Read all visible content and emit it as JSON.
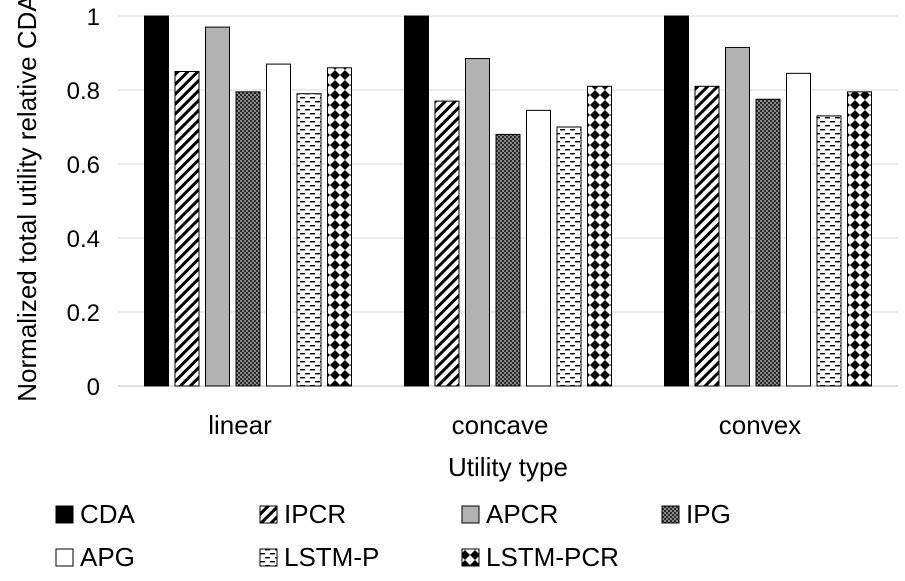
{
  "chart_data": {
    "type": "bar",
    "title": "",
    "xlabel": "Utility type",
    "ylabel": "Normalized total utility relative CDA",
    "ylim": [
      0,
      1
    ],
    "yticks": [
      0,
      0.2,
      0.4,
      0.6,
      0.8,
      1
    ],
    "ytick_labels": [
      "0",
      "0.2",
      "0.4",
      "0.6",
      "0.8",
      "1"
    ],
    "categories": [
      "linear",
      "concave",
      "convex"
    ],
    "grid": true,
    "legend_position": "bottom",
    "series": [
      {
        "name": "CDA",
        "values": [
          1.0,
          1.0,
          1.0
        ],
        "pattern": "solid-black"
      },
      {
        "name": "IPCR",
        "values": [
          0.85,
          0.77,
          0.81
        ],
        "pattern": "diagonal-hatch"
      },
      {
        "name": "APCR",
        "values": [
          0.97,
          0.885,
          0.915
        ],
        "pattern": "solid-gray"
      },
      {
        "name": "IPG",
        "values": [
          0.795,
          0.68,
          0.775
        ],
        "pattern": "dense-check"
      },
      {
        "name": "APG",
        "values": [
          0.87,
          0.745,
          0.845
        ],
        "pattern": "solid-white"
      },
      {
        "name": "LSTM-P",
        "values": [
          0.79,
          0.7,
          0.73
        ],
        "pattern": "dashes"
      },
      {
        "name": "LSTM-PCR",
        "values": [
          0.86,
          0.81,
          0.795
        ],
        "pattern": "diamond-check"
      }
    ]
  }
}
